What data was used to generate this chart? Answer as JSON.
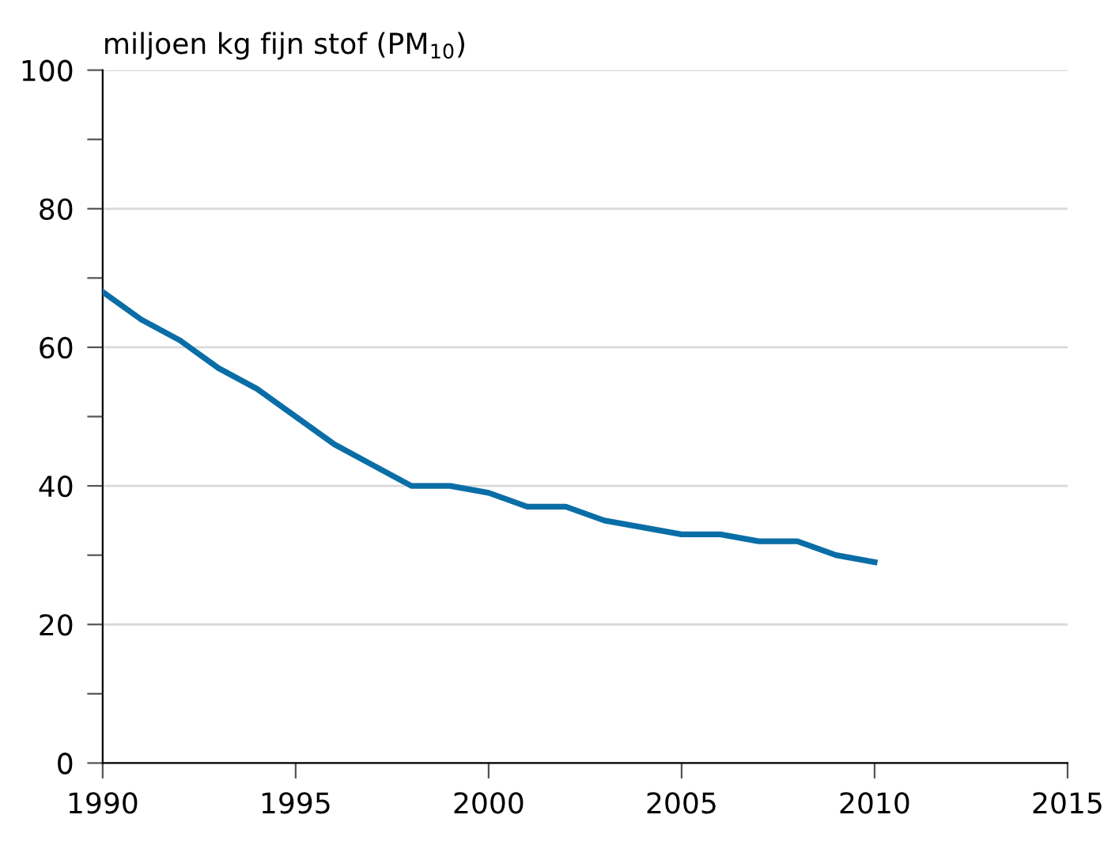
{
  "chart_data": {
    "type": "line",
    "ylabel": "miljoen kg fijn stof (PM$_{10}$)",
    "x": [
      1990,
      1991,
      1992,
      1993,
      1994,
      1995,
      1996,
      1997,
      1998,
      1999,
      2000,
      2001,
      2002,
      2003,
      2004,
      2005,
      2006,
      2007,
      2008,
      2009,
      2010
    ],
    "series": [
      {
        "color": "#0a6ea6",
        "values": [
          68,
          64,
          61,
          57,
          54,
          50,
          46,
          43,
          40,
          40,
          39,
          37,
          37,
          35,
          34,
          33,
          33,
          32,
          32,
          30,
          29
        ]
      }
    ],
    "xlim": [
      1990,
      2015
    ],
    "xticks": [
      1990,
      1995,
      2000,
      2005,
      2010,
      2015
    ],
    "ylim": [
      0,
      100
    ],
    "yticks": [
      0,
      {
        "value": 10,
        "label": null
      },
      20,
      {
        "value": 30,
        "label": null
      },
      40,
      {
        "value": 50,
        "label": null
      },
      60,
      {
        "value": 70,
        "label": null
      },
      80,
      {
        "value": 90,
        "label": null
      },
      100
    ],
    "grid": "y",
    "line_style": "solid"
  }
}
